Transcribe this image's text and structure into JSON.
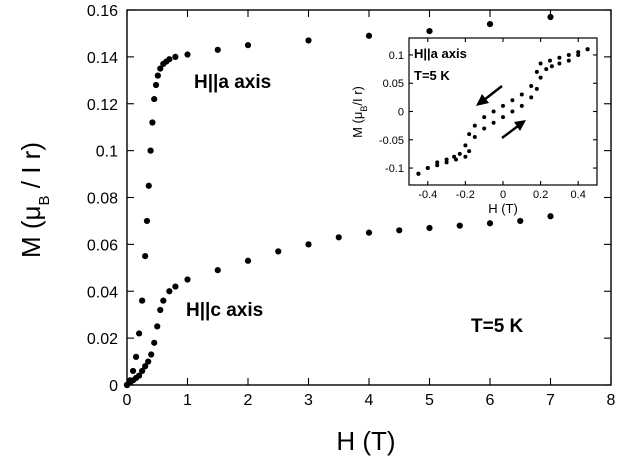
{
  "chart_data": [
    {
      "type": "scatter",
      "xlabel": "H (T)",
      "ylabel": "M (μ_B / I r)",
      "xlim": [
        0,
        8
      ],
      "ylim": [
        0,
        0.16
      ],
      "xticks": [
        "0",
        "1",
        "2",
        "3",
        "4",
        "5",
        "6",
        "7",
        "8"
      ],
      "yticks": [
        "0",
        "0.02",
        "0.04",
        "0.06",
        "0.08",
        "0.1",
        "0.12",
        "0.14",
        "0.16"
      ],
      "grid": false,
      "annotations": [
        "H||a axis",
        "H||c axis",
        "T=5  K"
      ],
      "series": [
        {
          "name": "H||a axis",
          "x": [
            0.0,
            0.05,
            0.1,
            0.15,
            0.2,
            0.25,
            0.3,
            0.33,
            0.36,
            0.39,
            0.42,
            0.45,
            0.48,
            0.51,
            0.55,
            0.6,
            0.65,
            0.7,
            0.8,
            1.0,
            1.5,
            2.0,
            3.0,
            4.0,
            5.0,
            6.0,
            7.0
          ],
          "y": [
            0.0,
            0.002,
            0.006,
            0.012,
            0.022,
            0.036,
            0.055,
            0.07,
            0.085,
            0.1,
            0.112,
            0.122,
            0.128,
            0.132,
            0.135,
            0.137,
            0.138,
            0.139,
            0.14,
            0.141,
            0.143,
            0.145,
            0.147,
            0.149,
            0.151,
            0.154,
            0.157
          ]
        },
        {
          "name": "H||c axis",
          "x": [
            0.0,
            0.05,
            0.1,
            0.15,
            0.2,
            0.25,
            0.3,
            0.35,
            0.4,
            0.45,
            0.5,
            0.55,
            0.6,
            0.7,
            0.8,
            1.0,
            1.5,
            2.0,
            2.5,
            3.0,
            3.5,
            4.0,
            4.5,
            5.0,
            5.5,
            6.0,
            6.5,
            7.0
          ],
          "y": [
            0.0,
            0.001,
            0.002,
            0.003,
            0.004,
            0.006,
            0.008,
            0.01,
            0.013,
            0.018,
            0.025,
            0.032,
            0.036,
            0.04,
            0.042,
            0.045,
            0.049,
            0.053,
            0.057,
            0.06,
            0.063,
            0.065,
            0.066,
            0.067,
            0.068,
            0.069,
            0.07,
            0.072
          ]
        }
      ]
    },
    {
      "type": "scatter",
      "xlabel": "H (T)",
      "ylabel": "M (μ_B/I r)",
      "xlim": [
        -0.5,
        0.5
      ],
      "ylim": [
        -0.13,
        0.13
      ],
      "xticks": [
        "-0.4",
        "-0.2",
        "0",
        "0.2",
        "0.4"
      ],
      "yticks": [
        "-0.1",
        "-0.05",
        "0",
        "0.05",
        "0.1"
      ],
      "annotations": [
        "H||a axis",
        "T=5  K"
      ],
      "series": [
        {
          "name": "decreasing field",
          "x": [
            0.45,
            0.4,
            0.35,
            0.3,
            0.25,
            0.2,
            0.18,
            0.15,
            0.1,
            0.05,
            0.0,
            -0.05,
            -0.1,
            -0.15,
            -0.18,
            -0.2,
            -0.23,
            -0.26,
            -0.3,
            -0.35,
            -0.4,
            -0.45
          ],
          "y": [
            0.11,
            0.105,
            0.1,
            0.095,
            0.09,
            0.085,
            0.07,
            0.045,
            0.03,
            0.02,
            0.01,
            0.0,
            -0.01,
            -0.025,
            -0.04,
            -0.06,
            -0.075,
            -0.08,
            -0.085,
            -0.09,
            -0.1,
            -0.11
          ]
        },
        {
          "name": "increasing field",
          "x": [
            -0.45,
            -0.4,
            -0.35,
            -0.3,
            -0.25,
            -0.2,
            -0.18,
            -0.15,
            -0.1,
            -0.05,
            0.0,
            0.05,
            0.1,
            0.15,
            0.18,
            0.2,
            0.23,
            0.26,
            0.3,
            0.35,
            0.4,
            0.45
          ],
          "y": [
            -0.11,
            -0.1,
            -0.095,
            -0.09,
            -0.085,
            -0.08,
            -0.07,
            -0.045,
            -0.03,
            -0.02,
            -0.01,
            0.0,
            0.01,
            0.025,
            0.04,
            0.06,
            0.075,
            0.08,
            0.085,
            0.09,
            0.1,
            0.11
          ]
        }
      ]
    }
  ]
}
